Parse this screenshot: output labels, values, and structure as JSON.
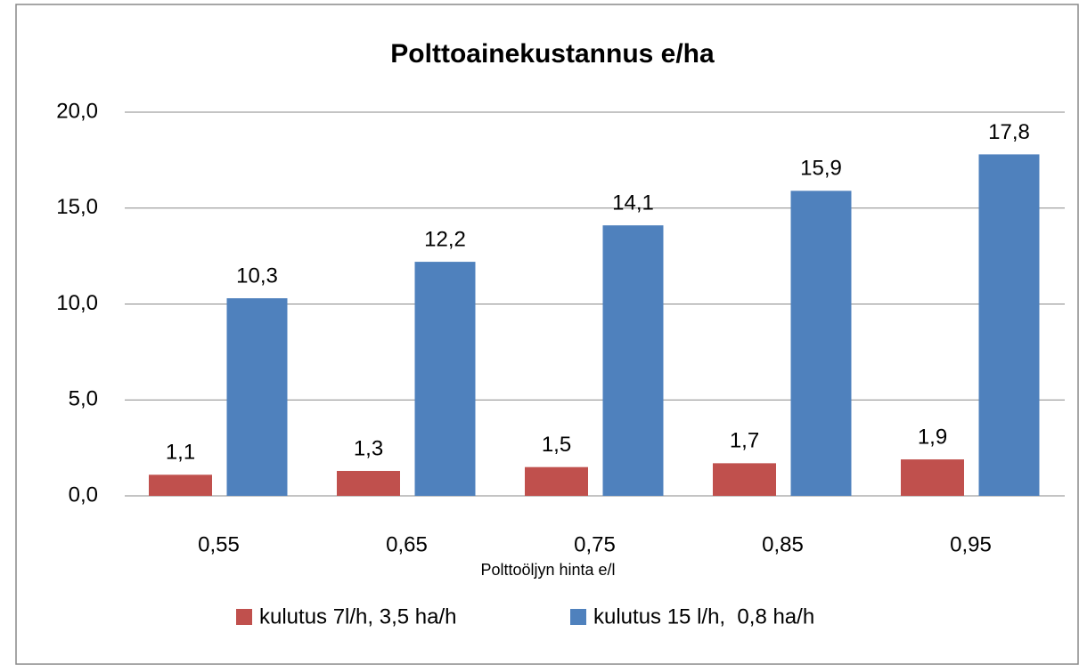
{
  "chart_data": {
    "type": "bar",
    "title": "Polttoainekustannus e/ha",
    "x_label": "Polttoöljyn hinta e/l",
    "categories": [
      "0,55",
      "0,65",
      "0,75",
      "0,85",
      "0,95"
    ],
    "series": [
      {
        "name": "kulutus 7l/h, 3,5 ha/h",
        "color": "#c0504d",
        "values": [
          1.1,
          1.3,
          1.5,
          1.7,
          1.9
        ],
        "value_labels": [
          "1,1",
          "1,3",
          "1,5",
          "1,7",
          "1,9"
        ]
      },
      {
        "name": "kulutus 15 l/h,  0,8 ha/h",
        "color": "#4f81bd",
        "values": [
          10.3,
          12.2,
          14.1,
          15.9,
          17.8
        ],
        "value_labels": [
          "10,3",
          "12,2",
          "14,1",
          "15,9",
          "17,8"
        ]
      }
    ],
    "ylim": [
      0,
      20
    ],
    "yticks": [
      {
        "value": 0,
        "label": "0,0"
      },
      {
        "value": 5,
        "label": "5,0"
      },
      {
        "value": 10,
        "label": "10,0"
      },
      {
        "value": 15,
        "label": "15,0"
      },
      {
        "value": 20,
        "label": "20,0"
      }
    ],
    "grid": true,
    "legend": "bottom"
  }
}
